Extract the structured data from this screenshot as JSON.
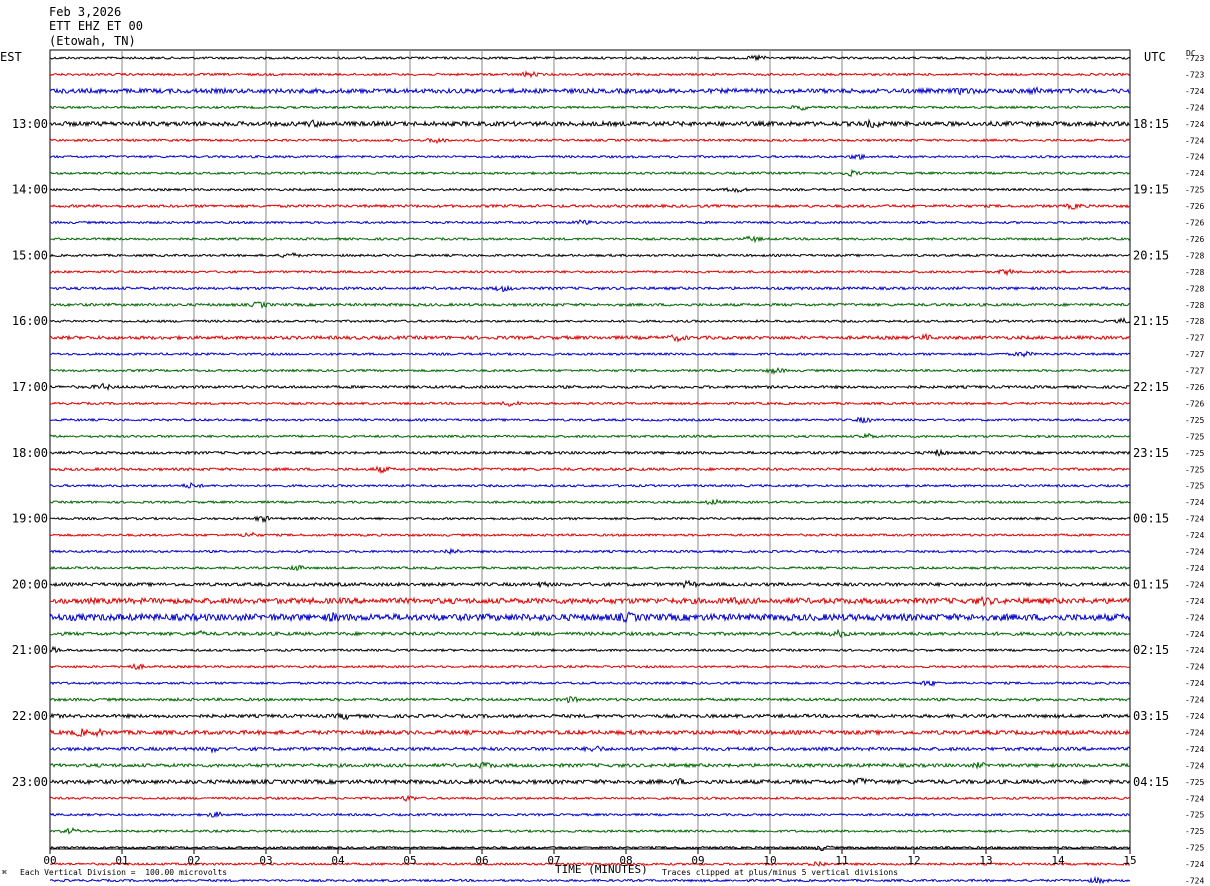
{
  "header": {
    "date": "Feb 3,2026",
    "station": "ETT EHZ ET 00",
    "location": "(Etowah, TN)"
  },
  "left_tz": "EST",
  "right_tz": "UTC",
  "dc_label": "DC",
  "footer": {
    "scale": "Each Vertical Division =  100.00 microvolts",
    "clip": "Traces clipped at plus/minus 5 vertical divisions"
  },
  "colors": {
    "cycle": [
      "#000000",
      "#dd0000",
      "#0000cc",
      "#006600"
    ],
    "grid": "#888888"
  },
  "chart_data": {
    "type": "line",
    "xlabel": "TIME (MINUTES)",
    "x_ticks": [
      "00",
      "01",
      "02",
      "03",
      "04",
      "05",
      "06",
      "07",
      "08",
      "09",
      "10",
      "11",
      "12",
      "13",
      "14",
      "15"
    ],
    "xlim": [
      0,
      15
    ],
    "rows_per_hour": 4,
    "left_hour_labels": [
      "13:00",
      "14:00",
      "15:00",
      "16:00",
      "17:00",
      "18:00",
      "19:00",
      "20:00",
      "21:00",
      "22:00",
      "23:00"
    ],
    "right_hour_labels": [
      "18:15",
      "19:15",
      "20:15",
      "21:15",
      "22:15",
      "23:15",
      "00:15",
      "01:15",
      "02:15",
      "03:15",
      "04:15"
    ],
    "dc_offsets": [
      "723",
      "723",
      "724",
      "724",
      "724",
      "724",
      "724",
      "724",
      "725",
      "726",
      "726",
      "726",
      "728",
      "728",
      "728",
      "728",
      "728",
      "727",
      "727",
      "727",
      "726",
      "726",
      "725",
      "725",
      "725",
      "725",
      "725",
      "724",
      "724",
      "724",
      "724",
      "724",
      "724",
      "724",
      "724",
      "724",
      "724",
      "724",
      "724",
      "724",
      "724",
      "724",
      "724",
      "724",
      "725",
      "724",
      "725",
      "725",
      "725",
      "724",
      "724",
      "725"
    ],
    "activity": [
      1,
      1,
      2,
      1,
      2,
      1,
      1,
      1,
      1,
      1.2,
      1,
      1,
      1,
      1,
      1.2,
      1.2,
      1,
      1.5,
      1,
      1,
      1.2,
      1,
      1,
      1,
      1.2,
      1.2,
      1,
      1,
      1,
      1,
      1,
      1,
      1.5,
      2.5,
      3,
      1.5,
      1,
      1,
      1,
      1.2,
      1.5,
      1.8,
      1.5,
      1.5,
      1.8,
      1,
      1,
      1,
      1,
      1,
      1,
      1
    ]
  }
}
